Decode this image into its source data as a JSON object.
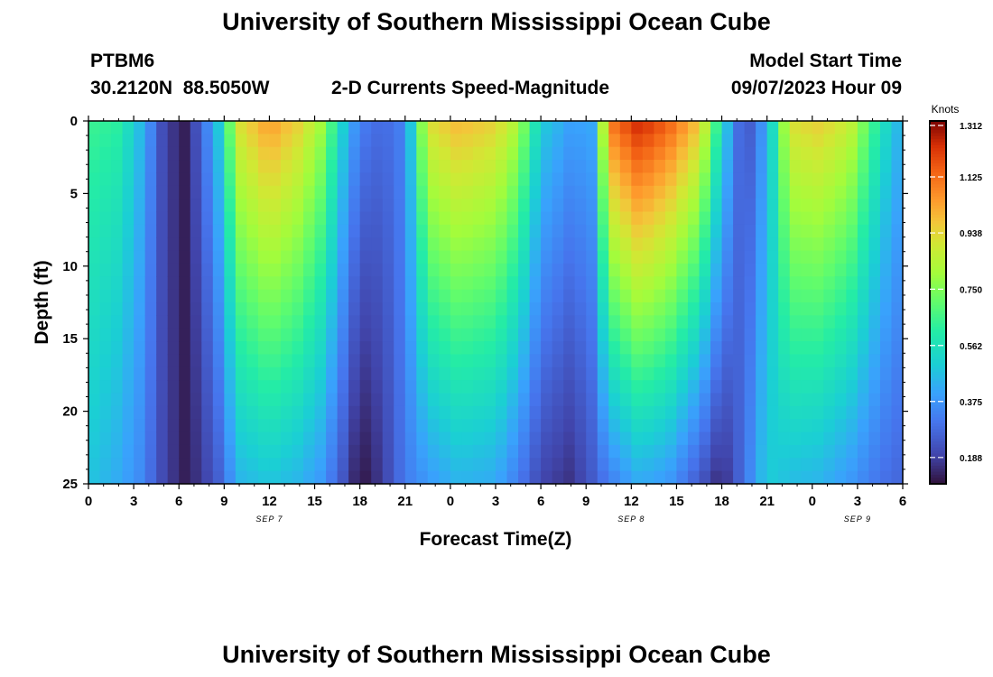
{
  "header": {
    "title": "University of Southern Mississippi Ocean Cube",
    "station": "PTBM6",
    "coords": "30.2120N  88.5050W",
    "chart_title": "2-D Currents Speed-Magnitude",
    "model_start_label": "Model Start Time",
    "model_start_value": "09/07/2023 Hour 09"
  },
  "footer": {
    "title": "University of Southern Mississippi Ocean Cube"
  },
  "chart_data": {
    "type": "heatmap",
    "title": "2-D Currents Speed-Magnitude",
    "xlabel": "Forecast Time(Z)",
    "ylabel": "Depth (ft)",
    "x_unit": "forecast hour from Sep 7 00Z",
    "x_range": [
      0,
      54
    ],
    "y_range": [
      0,
      25
    ],
    "y_inverted": true,
    "x_ticks": [
      "0",
      "3",
      "6",
      "9",
      "12",
      "15",
      "18",
      "21",
      "0",
      "3",
      "6",
      "9",
      "12",
      "15",
      "18",
      "21",
      "0",
      "3",
      "6"
    ],
    "y_ticks": [
      "0",
      "5",
      "10",
      "15",
      "20",
      "25"
    ],
    "date_labels": [
      {
        "text": "SEP 7",
        "hour": 12
      },
      {
        "text": "SEP 8",
        "hour": 36
      },
      {
        "text": "SEP 9",
        "hour": 51
      }
    ],
    "colorbar": {
      "unit": "Knots",
      "min": 0.1,
      "max": 1.312,
      "ticks": [
        "1.312",
        "1.125",
        "0.938",
        "0.750",
        "0.562",
        "0.375",
        "0.188"
      ]
    },
    "columns": [
      {
        "x": 0,
        "top": 0.65,
        "bot": 0.48
      },
      {
        "x": 2,
        "top": 0.62,
        "bot": 0.42
      },
      {
        "x": 3.5,
        "top": 0.45,
        "bot": 0.35
      },
      {
        "x": 5,
        "top": 0.2,
        "bot": 0.2
      },
      {
        "x": 6.5,
        "top": 0.12,
        "bot": 0.12
      },
      {
        "x": 8.5,
        "top": 0.45,
        "bot": 0.24
      },
      {
        "x": 10,
        "top": 0.92,
        "bot": 0.44
      },
      {
        "x": 12,
        "top": 1.05,
        "bot": 0.48
      },
      {
        "x": 14,
        "top": 0.95,
        "bot": 0.44
      },
      {
        "x": 15.5,
        "top": 0.8,
        "bot": 0.38
      },
      {
        "x": 17,
        "top": 0.48,
        "bot": 0.22
      },
      {
        "x": 18,
        "top": 0.33,
        "bot": 0.1
      },
      {
        "x": 19.5,
        "top": 0.28,
        "bot": 0.18
      },
      {
        "x": 21,
        "top": 0.34,
        "bot": 0.32
      },
      {
        "x": 22.5,
        "top": 0.92,
        "bot": 0.38
      },
      {
        "x": 24.5,
        "top": 1.0,
        "bot": 0.44
      },
      {
        "x": 27,
        "top": 0.95,
        "bot": 0.42
      },
      {
        "x": 28.5,
        "top": 0.82,
        "bot": 0.32
      },
      {
        "x": 30,
        "top": 0.5,
        "bot": 0.2
      },
      {
        "x": 32,
        "top": 0.4,
        "bot": 0.16
      },
      {
        "x": 33.5,
        "top": 0.42,
        "bot": 0.25
      },
      {
        "x": 34.5,
        "top": 1.1,
        "bot": 0.32
      },
      {
        "x": 36.5,
        "top": 1.25,
        "bot": 0.42
      },
      {
        "x": 38.5,
        "top": 1.15,
        "bot": 0.38
      },
      {
        "x": 40.5,
        "top": 0.98,
        "bot": 0.24
      },
      {
        "x": 42,
        "top": 0.55,
        "bot": 0.14
      },
      {
        "x": 43.5,
        "top": 0.2,
        "bot": 0.3
      },
      {
        "x": 45,
        "top": 0.42,
        "bot": 0.5
      },
      {
        "x": 46.5,
        "top": 0.92,
        "bot": 0.46
      },
      {
        "x": 48.5,
        "top": 0.96,
        "bot": 0.44
      },
      {
        "x": 50.5,
        "top": 0.88,
        "bot": 0.38
      },
      {
        "x": 52.5,
        "top": 0.58,
        "bot": 0.3
      },
      {
        "x": 54,
        "top": 0.42,
        "bot": 0.27
      }
    ]
  }
}
